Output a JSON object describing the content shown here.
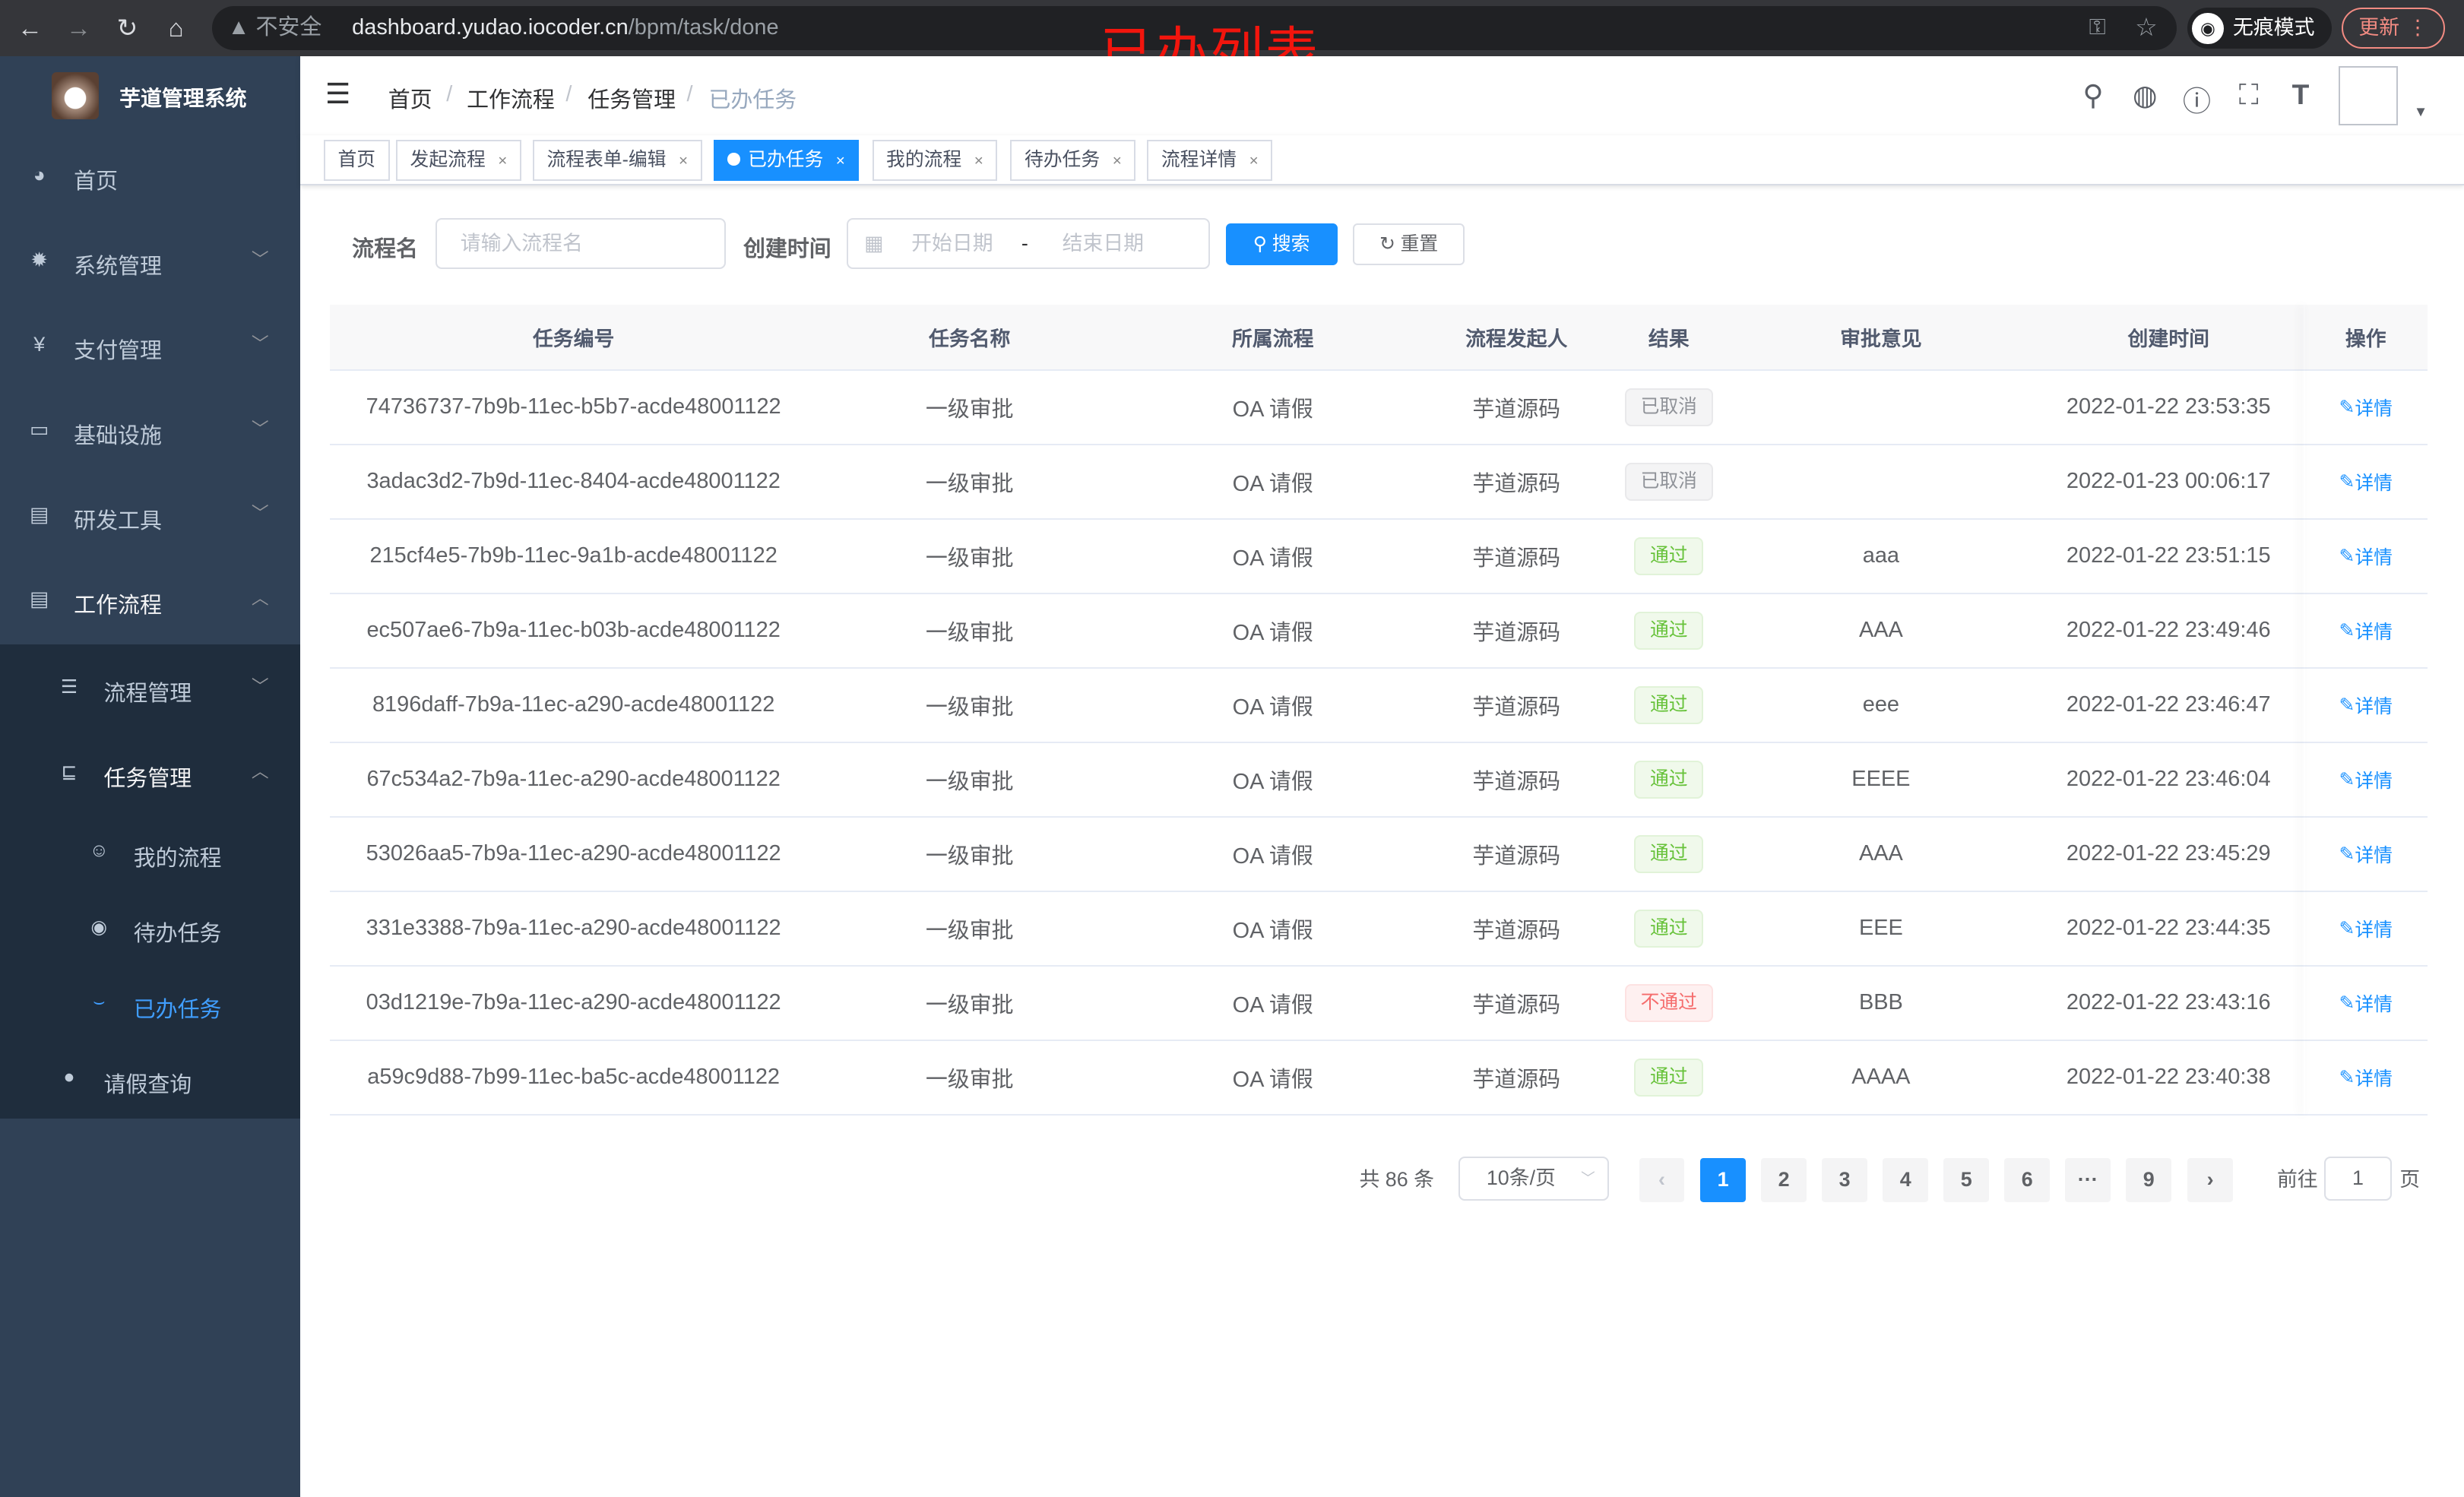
{
  "browser": {
    "security": "不安全",
    "url_host": "dashboard.yudao.iocoder.cn",
    "url_path": "/bpm/task/done",
    "incognito": "无痕模式",
    "update": "更新"
  },
  "annotation": "已办列表",
  "sidebar": {
    "brand": "芋道管理系统",
    "items": [
      {
        "label": "首页",
        "icon": "dashboard-icon"
      },
      {
        "label": "系统管理",
        "icon": "gear-icon"
      },
      {
        "label": "支付管理",
        "icon": "yen-icon"
      },
      {
        "label": "基础设施",
        "icon": "monitor-icon"
      },
      {
        "label": "研发工具",
        "icon": "toolbox-icon"
      },
      {
        "label": "工作流程",
        "icon": "toolbox-icon"
      }
    ],
    "sub": [
      {
        "label": "流程管理"
      },
      {
        "label": "任务管理"
      },
      {
        "label": "我的流程"
      },
      {
        "label": "待办任务"
      },
      {
        "label": "已办任务"
      },
      {
        "label": "请假查询"
      }
    ],
    "active_color": "#409eff"
  },
  "breadcrumb": [
    "首页",
    "工作流程",
    "任务管理",
    "已办任务"
  ],
  "tags": [
    {
      "label": "首页"
    },
    {
      "label": "发起流程"
    },
    {
      "label": "流程表单-编辑"
    },
    {
      "label": "已办任务"
    },
    {
      "label": "我的流程"
    },
    {
      "label": "待办任务"
    },
    {
      "label": "流程详情"
    }
  ],
  "search": {
    "name_label": "流程名",
    "name_placeholder": "请输入流程名",
    "time_label": "创建时间",
    "start_placeholder": "开始日期",
    "sep": "-",
    "end_placeholder": "结束日期",
    "search_btn": "搜索",
    "reset_btn": "重置"
  },
  "table": {
    "headers": [
      "任务编号",
      "任务名称",
      "所属流程",
      "流程发起人",
      "结果",
      "审批意见",
      "创建时间",
      "操作"
    ],
    "rows": [
      [
        "74736737-7b9b-11ec-b5b7-acde48001122",
        "一级审批",
        "OA 请假",
        "芋道源码",
        "已取消",
        "",
        "2022-01-22 23:53:35",
        "详情"
      ],
      [
        "3adac3d2-7b9d-11ec-8404-acde48001122",
        "一级审批",
        "OA 请假",
        "芋道源码",
        "已取消",
        "",
        "2022-01-23 00:06:17",
        "详情"
      ],
      [
        "215cf4e5-7b9b-11ec-9a1b-acde48001122",
        "一级审批",
        "OA 请假",
        "芋道源码",
        "通过",
        "aaa",
        "2022-01-22 23:51:15",
        "详情"
      ],
      [
        "ec507ae6-7b9a-11ec-b03b-acde48001122",
        "一级审批",
        "OA 请假",
        "芋道源码",
        "通过",
        "AAA",
        "2022-01-22 23:49:46",
        "详情"
      ],
      [
        "8196daff-7b9a-11ec-a290-acde48001122",
        "一级审批",
        "OA 请假",
        "芋道源码",
        "通过",
        "eee",
        "2022-01-22 23:46:47",
        "详情"
      ],
      [
        "67c534a2-7b9a-11ec-a290-acde48001122",
        "一级审批",
        "OA 请假",
        "芋道源码",
        "通过",
        "EEEE",
        "2022-01-22 23:46:04",
        "详情"
      ],
      [
        "53026aa5-7b9a-11ec-a290-acde48001122",
        "一级审批",
        "OA 请假",
        "芋道源码",
        "通过",
        "AAA",
        "2022-01-22 23:45:29",
        "详情"
      ],
      [
        "331e3388-7b9a-11ec-a290-acde48001122",
        "一级审批",
        "OA 请假",
        "芋道源码",
        "通过",
        "EEE",
        "2022-01-22 23:44:35",
        "详情"
      ],
      [
        "03d1219e-7b9a-11ec-a290-acde48001122",
        "一级审批",
        "OA 请假",
        "芋道源码",
        "不通过",
        "BBB",
        "2022-01-22 23:43:16",
        "详情"
      ],
      [
        "a59c9d88-7b99-11ec-ba5c-acde48001122",
        "一级审批",
        "OA 请假",
        "芋道源码",
        "通过",
        "AAAA",
        "2022-01-22 23:40:38",
        "详情"
      ]
    ]
  },
  "pagination": {
    "total": "共 86 条",
    "page_size": "10条/页",
    "pages": [
      "1",
      "2",
      "3",
      "4",
      "5",
      "6",
      "···",
      "9"
    ],
    "current": "1",
    "goto_label": "前往",
    "goto_value": "1",
    "goto_suffix": "页"
  },
  "colors": {
    "primary": "#1890ff",
    "sidebar": "#304156",
    "submenu": "#1f2d3d"
  }
}
